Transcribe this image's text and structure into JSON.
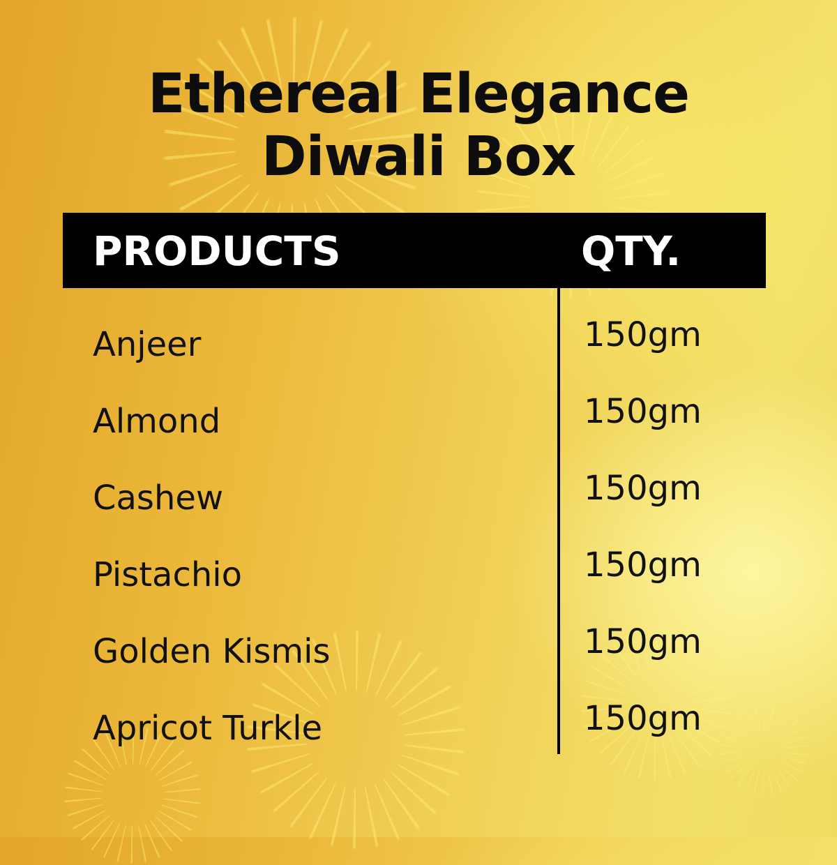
{
  "title": {
    "line1": "Ethereal Elegance",
    "line2": "Diwali Box"
  },
  "table": {
    "headers": {
      "product": "PRODUCTS",
      "qty": "QTY."
    },
    "rows": [
      {
        "product": "Anjeer",
        "qty": "150gm"
      },
      {
        "product": "Almond",
        "qty": "150gm"
      },
      {
        "product": "Cashew",
        "qty": "150gm"
      },
      {
        "product": "Pistachio",
        "qty": "150gm"
      },
      {
        "product": "Golden Kismis",
        "qty": "150gm"
      },
      {
        "product": "Apricot Turkle",
        "qty": "150gm"
      }
    ]
  },
  "colors": {
    "background": "#ebb83a",
    "header_bg": "#000000",
    "text": "#111111"
  }
}
